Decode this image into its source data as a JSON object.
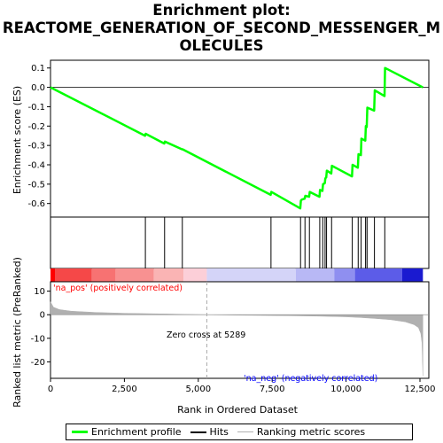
{
  "title_lines": [
    "Enrichment plot:",
    "REACTOME_GENERATION_OF_SECOND_MESSENGER_M",
    "OLECULES"
  ],
  "chart_data": {
    "type": "line",
    "title": "Enrichment plot: REACTOME_GENERATION_OF_SECOND_MESSENGER_MOLECULES",
    "xlabel": "Rank in Ordered Dataset",
    "xlim": [
      0,
      12800
    ],
    "x_ticks": [
      0,
      2500,
      5000,
      7500,
      10000,
      12500
    ],
    "x_tick_labels": [
      "0",
      "2,500",
      "5,000",
      "7,500",
      "10,000",
      "12,500"
    ],
    "enrichment": {
      "ylabel": "Enrichment score (ES)",
      "ylim": [
        -0.67,
        0.14
      ],
      "y_ticks": [
        0.1,
        0.0,
        -0.1,
        -0.2,
        -0.3,
        -0.4,
        -0.5,
        -0.6
      ],
      "y_tick_labels": [
        "0.1",
        "0.0",
        "-0.1",
        "-0.2",
        "-0.3",
        "-0.4",
        "-0.5",
        "-0.6"
      ],
      "color": "#00ff00",
      "points": [
        [
          0,
          0.0
        ],
        [
          3200,
          -0.25
        ],
        [
          3220,
          -0.24
        ],
        [
          3850,
          -0.29
        ],
        [
          3870,
          -0.28
        ],
        [
          4450,
          -0.32
        ],
        [
          4470,
          -0.32
        ],
        [
          7450,
          -0.555
        ],
        [
          7470,
          -0.54
        ],
        [
          8450,
          -0.625
        ],
        [
          8470,
          -0.585
        ],
        [
          8500,
          -0.58
        ],
        [
          8600,
          -0.575
        ],
        [
          8620,
          -0.56
        ],
        [
          8750,
          -0.565
        ],
        [
          8770,
          -0.54
        ],
        [
          9100,
          -0.565
        ],
        [
          9120,
          -0.53
        ],
        [
          9200,
          -0.535
        ],
        [
          9220,
          -0.5
        ],
        [
          9280,
          -0.495
        ],
        [
          9300,
          -0.47
        ],
        [
          9330,
          -0.465
        ],
        [
          9350,
          -0.43
        ],
        [
          9500,
          -0.445
        ],
        [
          9520,
          -0.405
        ],
        [
          10200,
          -0.46
        ],
        [
          10220,
          -0.4
        ],
        [
          10400,
          -0.415
        ],
        [
          10420,
          -0.345
        ],
        [
          10500,
          -0.35
        ],
        [
          10520,
          -0.265
        ],
        [
          10650,
          -0.275
        ],
        [
          10670,
          -0.2
        ],
        [
          10700,
          -0.205
        ],
        [
          10720,
          -0.105
        ],
        [
          10950,
          -0.12
        ],
        [
          10970,
          -0.015
        ],
        [
          11300,
          -0.045
        ],
        [
          11320,
          0.1
        ],
        [
          12600,
          0.0
        ]
      ]
    },
    "hits": [
      3210,
      3860,
      4460,
      7460,
      8460,
      8610,
      8760,
      9110,
      9210,
      9290,
      9340,
      9510,
      10210,
      10410,
      10510,
      10660,
      10710,
      10960,
      11310
    ],
    "ranked_metric": {
      "ylabel": "Ranked list metric (PreRanked)",
      "ylim": [
        -27,
        14
      ],
      "y_ticks": [
        10,
        0,
        -10,
        -20
      ],
      "y_tick_labels": [
        "10",
        "0",
        "-10",
        "-20"
      ],
      "color": "#b0b0b0",
      "points": [
        [
          0,
          5.5
        ],
        [
          100,
          3.2
        ],
        [
          300,
          2.2
        ],
        [
          700,
          1.5
        ],
        [
          1500,
          1.0
        ],
        [
          2500,
          0.6
        ],
        [
          4000,
          0.3
        ],
        [
          5289,
          0.0
        ],
        [
          6500,
          -0.2
        ],
        [
          8000,
          -0.4
        ],
        [
          9000,
          -0.6
        ],
        [
          10000,
          -0.9
        ],
        [
          10500,
          -1.2
        ],
        [
          11000,
          -1.6
        ],
        [
          11500,
          -2.1
        ],
        [
          12000,
          -3.0
        ],
        [
          12300,
          -4.2
        ],
        [
          12450,
          -5.5
        ],
        [
          12530,
          -8.0
        ],
        [
          12570,
          -12.0
        ],
        [
          12600,
          -26.0
        ]
      ]
    },
    "zero_cross": 5289,
    "annotations": {
      "pos_label": "'na_pos' (positively correlated)",
      "neg_label": "'na_neg' (negatively correlated)",
      "zero_cross_label": "Zero cross at 5289"
    },
    "color_band": [
      {
        "from": 0,
        "to": 150,
        "color": "#ff0000"
      },
      {
        "from": 150,
        "to": 1400,
        "color": "#f54848"
      },
      {
        "from": 1400,
        "to": 2200,
        "color": "#f77272"
      },
      {
        "from": 2200,
        "to": 3500,
        "color": "#f89191"
      },
      {
        "from": 3500,
        "to": 4500,
        "color": "#fab4b4"
      },
      {
        "from": 4500,
        "to": 5289,
        "color": "#fccfd8"
      },
      {
        "from": 5289,
        "to": 8300,
        "color": "#d4d4f8"
      },
      {
        "from": 8300,
        "to": 9600,
        "color": "#b8b8f5"
      },
      {
        "from": 9600,
        "to": 10300,
        "color": "#8f8ff0"
      },
      {
        "from": 10300,
        "to": 11900,
        "color": "#5c5ce8"
      },
      {
        "from": 11900,
        "to": 12600,
        "color": "#1a1ad0"
      }
    ]
  },
  "legend": [
    {
      "label": "Enrichment profile",
      "color": "#00ff00"
    },
    {
      "label": "Hits",
      "color": "#000000"
    },
    {
      "label": "Ranking metric scores",
      "color": "#b0b0b0"
    }
  ]
}
